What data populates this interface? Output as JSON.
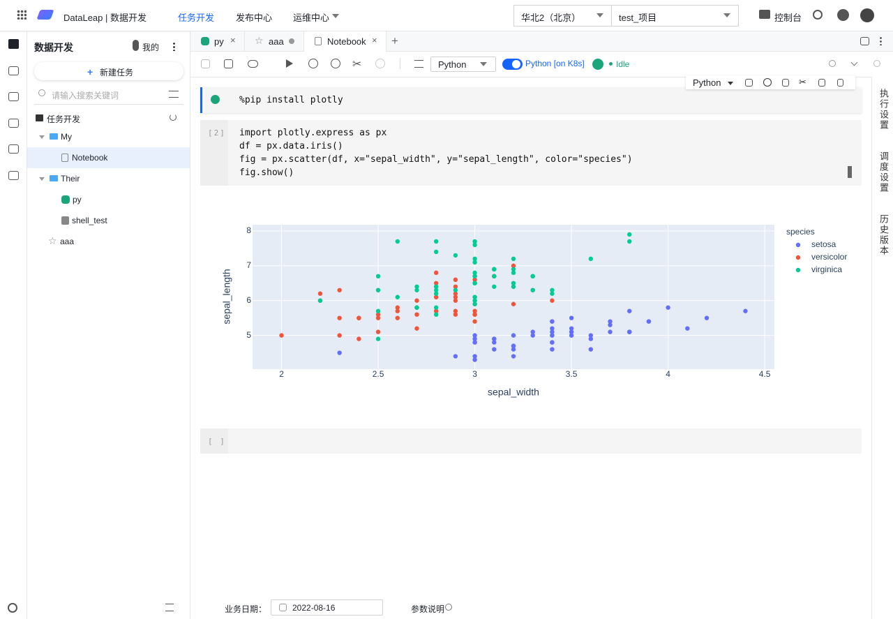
{
  "header": {
    "brand": "DataLeap | 数据开发",
    "nav": [
      "任务开发",
      "发布中心",
      "运维中心"
    ],
    "region": "华北2（北京）",
    "project": "test_项目",
    "console": "控制台"
  },
  "sidebar": {
    "title": "数据开发",
    "mine": "我的",
    "new_task": "新建任务",
    "search_placeholder": "请输入搜索关键词",
    "tree_root": "任务开发",
    "tree": [
      "My",
      "Notebook",
      "Their",
      "py",
      "shell_test",
      "aaa"
    ]
  },
  "tabs": [
    "py",
    "aaa",
    "Notebook"
  ],
  "toolbar": {
    "kernel": "Python",
    "runtime": "Python [on K8s]",
    "status": "Idle"
  },
  "cell_toolbar": {
    "language": "Python"
  },
  "cells": [
    {
      "code": [
        "%pip install plotly"
      ]
    },
    {
      "prompt": "[2]",
      "code": [
        "import plotly.express as px",
        "df = px.data.iris()",
        "fig = px.scatter(df, x=\"sepal_width\", y=\"sepal_length\", color=\"species\")",
        "fig.show()"
      ]
    },
    {
      "prompt": "[ ]"
    }
  ],
  "right_panel": [
    "执行设置",
    "调度设置",
    "历史版本"
  ],
  "footer": {
    "date_label": "业务日期：",
    "date": "2022-08-16",
    "params": "参数说明"
  },
  "chart_data": {
    "type": "scatter",
    "x_label": "sepal_width",
    "y_label": "sepal_length",
    "legend_title": "species",
    "grid": true,
    "background": "#e5ecf6",
    "xlim": [
      1.85,
      4.55
    ],
    "ylim": [
      4.03,
      8.18
    ],
    "xticks": [
      2,
      2.5,
      3,
      3.5,
      4,
      4.5
    ],
    "yticks": [
      5,
      6,
      7,
      8
    ],
    "series": [
      {
        "name": "setosa",
        "color": "#636efa",
        "x": [
          3.5,
          3.0,
          3.2,
          3.1,
          3.6,
          3.9,
          3.4,
          3.4,
          2.9,
          3.1,
          3.7,
          3.4,
          3.0,
          3.0,
          4.0,
          4.4,
          3.9,
          3.5,
          3.8,
          3.8,
          3.4,
          3.7,
          3.6,
          3.3,
          3.4,
          3.0,
          3.4,
          3.5,
          3.4,
          3.2,
          3.1,
          3.4,
          4.1,
          4.2,
          3.1,
          3.2,
          3.5,
          3.6,
          3.0,
          3.4,
          3.5,
          2.3,
          3.2,
          3.5,
          3.8,
          3.0,
          3.8,
          3.2,
          3.7,
          3.3
        ],
        "values": [
          5.1,
          4.9,
          4.7,
          4.6,
          5.0,
          5.4,
          4.6,
          5.0,
          4.4,
          4.9,
          5.4,
          4.8,
          4.8,
          4.3,
          5.8,
          5.7,
          5.4,
          5.1,
          5.7,
          5.1,
          5.4,
          5.1,
          4.6,
          5.1,
          4.8,
          5.0,
          5.0,
          5.2,
          5.2,
          4.7,
          4.8,
          5.4,
          5.2,
          5.5,
          4.9,
          5.0,
          5.5,
          4.9,
          4.4,
          5.1,
          5.0,
          4.5,
          4.4,
          5.0,
          5.1,
          4.8,
          5.1,
          4.6,
          5.3,
          5.0
        ]
      },
      {
        "name": "versicolor",
        "color": "#ef553b",
        "x": [
          3.2,
          3.2,
          3.1,
          2.3,
          2.8,
          2.8,
          3.3,
          2.4,
          2.9,
          2.7,
          2.0,
          3.0,
          2.2,
          2.9,
          2.9,
          3.1,
          3.0,
          2.7,
          2.2,
          2.5,
          3.2,
          2.8,
          2.5,
          2.8,
          2.9,
          3.0,
          2.8,
          3.0,
          2.9,
          2.6,
          2.4,
          2.4,
          2.7,
          2.7,
          3.0,
          3.4,
          3.1,
          2.3,
          3.0,
          2.5,
          2.6,
          3.0,
          2.6,
          2.3,
          2.7,
          3.0,
          2.9,
          2.9,
          2.5,
          2.8
        ],
        "values": [
          7.0,
          6.4,
          6.9,
          5.5,
          6.5,
          5.7,
          6.3,
          4.9,
          6.6,
          5.2,
          5.0,
          5.9,
          6.0,
          6.1,
          5.6,
          6.7,
          5.6,
          5.8,
          6.2,
          5.6,
          5.9,
          6.1,
          6.3,
          6.1,
          6.4,
          6.6,
          6.8,
          6.7,
          6.0,
          5.7,
          5.5,
          5.5,
          5.8,
          6.0,
          5.4,
          6.0,
          6.7,
          6.3,
          5.6,
          5.5,
          5.5,
          6.1,
          5.8,
          5.0,
          5.6,
          5.7,
          5.7,
          6.2,
          5.1,
          5.7
        ]
      },
      {
        "name": "virginica",
        "color": "#00cc96",
        "x": [
          3.3,
          2.7,
          3.0,
          2.9,
          3.0,
          3.0,
          2.5,
          2.9,
          2.5,
          3.6,
          3.2,
          2.7,
          3.0,
          2.5,
          2.8,
          3.2,
          3.0,
          3.8,
          2.6,
          2.2,
          3.2,
          2.8,
          2.8,
          2.7,
          3.3,
          3.2,
          2.8,
          3.0,
          2.8,
          3.0,
          2.8,
          3.8,
          2.8,
          2.8,
          2.6,
          3.0,
          3.4,
          3.1,
          3.0,
          3.1,
          3.1,
          3.1,
          2.7,
          3.2,
          3.3,
          3.0,
          2.5,
          3.0,
          3.4,
          3.0
        ],
        "values": [
          6.3,
          5.8,
          7.1,
          6.3,
          6.5,
          7.6,
          4.9,
          7.3,
          6.7,
          7.2,
          6.5,
          6.4,
          6.8,
          5.7,
          5.8,
          6.4,
          6.5,
          7.7,
          7.7,
          6.0,
          6.9,
          5.6,
          7.7,
          6.3,
          6.7,
          7.2,
          6.2,
          6.1,
          6.4,
          7.2,
          7.4,
          7.9,
          6.4,
          6.3,
          6.1,
          7.7,
          6.3,
          6.4,
          6.0,
          6.9,
          6.7,
          6.9,
          5.8,
          6.8,
          6.7,
          6.7,
          6.3,
          6.5,
          6.2,
          5.9
        ]
      }
    ]
  }
}
